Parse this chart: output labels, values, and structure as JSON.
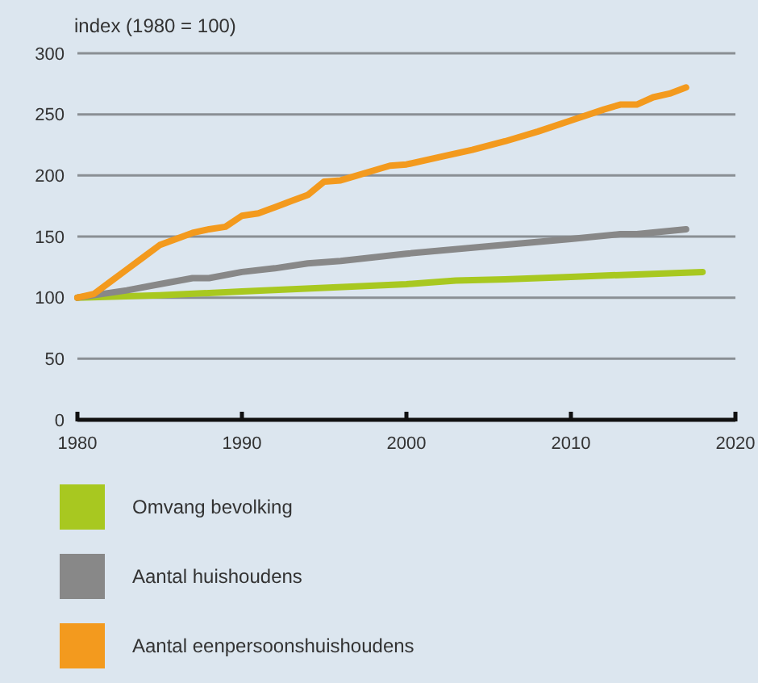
{
  "chart_data": {
    "type": "line",
    "ylabel": "index (1980 = 100)",
    "xlim": [
      1980,
      2020
    ],
    "xticks": [
      1980,
      1990,
      2000,
      2010,
      2020
    ],
    "ylim": [
      0,
      300
    ],
    "yticks": [
      0,
      50,
      100,
      150,
      200,
      250,
      300
    ],
    "grid": "y",
    "legend": "bottom",
    "line_style": "solid",
    "marker": "none",
    "series": [
      {
        "name": "Omvang bevolking",
        "color": "#a8c820",
        "x": [
          1980,
          1985,
          1990,
          1995,
          2000,
          2003,
          2006,
          2010,
          2014,
          2018
        ],
        "values": [
          100,
          102,
          105,
          108,
          111,
          114,
          115,
          117,
          119,
          121
        ]
      },
      {
        "name": "Aantal huishoudens",
        "color": "#888888",
        "x": [
          1980,
          1983,
          1985,
          1987,
          1988,
          1990,
          1992,
          1994,
          1996,
          2000,
          2005,
          2010,
          2013,
          2014,
          2017
        ],
        "values": [
          100,
          106,
          111,
          116,
          116,
          121,
          124,
          128,
          130,
          136,
          142,
          148,
          152,
          152,
          156
        ]
      },
      {
        "name": "Aantal eenpersoonshuishoudens",
        "color": "#f39a1e",
        "x": [
          1980,
          1981,
          1982,
          1983,
          1984,
          1985,
          1986,
          1987,
          1988,
          1989,
          1990,
          1991,
          1992,
          1993,
          1994,
          1995,
          1996,
          1997,
          1998,
          1999,
          2000,
          2002,
          2004,
          2006,
          2008,
          2010,
          2012,
          2013,
          2014,
          2015,
          2016,
          2017
        ],
        "values": [
          100,
          103,
          113,
          123,
          133,
          143,
          148,
          153,
          156,
          158,
          167,
          169,
          174,
          179,
          184,
          195,
          196,
          200,
          204,
          208,
          209,
          215,
          221,
          228,
          236,
          245,
          254,
          258,
          258,
          264,
          267,
          272
        ]
      }
    ]
  }
}
